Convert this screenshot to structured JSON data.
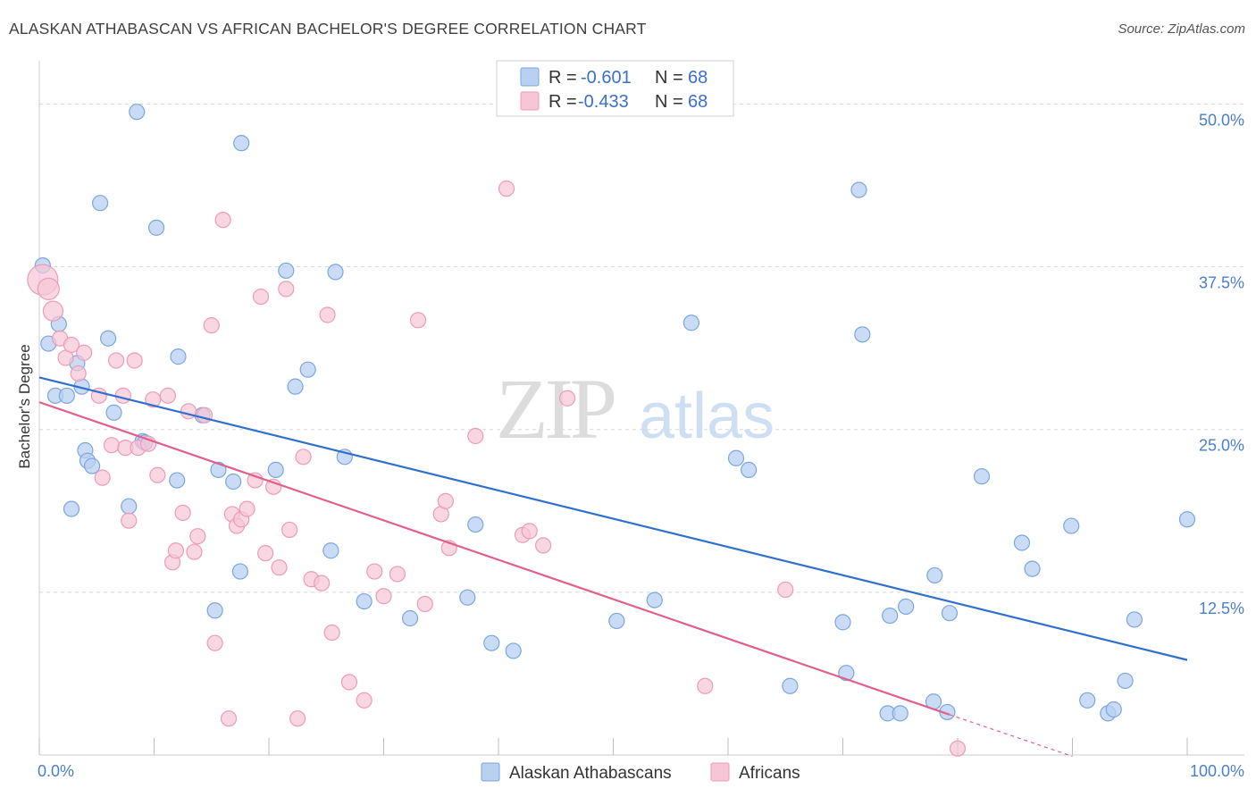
{
  "title": "ALASKAN ATHABASCAN VS AFRICAN BACHELOR'S DEGREE CORRELATION CHART",
  "source": "Source: ZipAtlas.com",
  "watermark": {
    "zip": "ZIP",
    "atlas": "atlas"
  },
  "colors": {
    "blue_fill": "#b8d0f2",
    "blue_stroke": "#7aa6e0",
    "blue_line": "#2f6fce",
    "pink_fill": "#f7c6d6",
    "pink_stroke": "#ef9ab6",
    "pink_line": "#e0608a",
    "grid": "#d8d8d8",
    "axis_text": "#4a7fd0"
  },
  "legend": [
    {
      "r_label": "R =",
      "r_value": "-0.601",
      "n_label": "N =",
      "n_value": "68"
    },
    {
      "r_label": "R =",
      "r_value": "-0.433",
      "n_label": "N =",
      "n_value": "68"
    }
  ],
  "bottom_legend": [
    "Alaskan Athabascans",
    "Africans"
  ],
  "chart_data": {
    "type": "scatter",
    "ylabel": "Bachelor's Degree",
    "xlabel": "",
    "x_tick_labels": [
      "0.0%",
      "100.0%"
    ],
    "y_tick_labels": [
      "12.5%",
      "25.0%",
      "37.5%",
      "50.0%"
    ],
    "y_ticks": [
      12.5,
      25.0,
      37.5,
      50.0
    ],
    "xlim": [
      0,
      100
    ],
    "ylim": [
      0,
      52.5
    ],
    "grid": true,
    "legend_position": "top-center",
    "series": [
      {
        "name": "Alaskan Athabascans",
        "trend": {
          "x": [
            0,
            100
          ],
          "y": [
            29.0,
            7.3
          ]
        },
        "points": [
          [
            0.3,
            37.6
          ],
          [
            0.8,
            31.6
          ],
          [
            1.4,
            27.6
          ],
          [
            1.7,
            33.1
          ],
          [
            2.4,
            27.6
          ],
          [
            2.8,
            18.9
          ],
          [
            3.3,
            30.1
          ],
          [
            3.7,
            28.3
          ],
          [
            4.0,
            23.4
          ],
          [
            4.2,
            22.6
          ],
          [
            4.6,
            22.2
          ],
          [
            5.3,
            42.4
          ],
          [
            6.0,
            32.0
          ],
          [
            6.5,
            26.3
          ],
          [
            7.8,
            19.1
          ],
          [
            8.5,
            49.4
          ],
          [
            9.0,
            24.1
          ],
          [
            9.2,
            24.0
          ],
          [
            10.2,
            40.5
          ],
          [
            12.0,
            21.1
          ],
          [
            12.1,
            30.6
          ],
          [
            14.2,
            26.1
          ],
          [
            15.3,
            11.1
          ],
          [
            15.6,
            21.9
          ],
          [
            16.9,
            21.0
          ],
          [
            17.5,
            14.1
          ],
          [
            17.6,
            47.0
          ],
          [
            20.6,
            21.9
          ],
          [
            21.5,
            37.2
          ],
          [
            22.3,
            28.3
          ],
          [
            23.4,
            29.6
          ],
          [
            25.4,
            15.7
          ],
          [
            25.8,
            37.1
          ],
          [
            26.6,
            22.9
          ],
          [
            28.3,
            11.8
          ],
          [
            32.3,
            10.5
          ],
          [
            37.3,
            12.1
          ],
          [
            38.0,
            17.7
          ],
          [
            39.4,
            8.6
          ],
          [
            41.3,
            8.0
          ],
          [
            50.3,
            10.3
          ],
          [
            53.6,
            11.9
          ],
          [
            56.8,
            33.2
          ],
          [
            60.7,
            22.8
          ],
          [
            61.8,
            21.9
          ],
          [
            65.4,
            5.3
          ],
          [
            70.0,
            10.2
          ],
          [
            70.3,
            6.3
          ],
          [
            71.4,
            43.4
          ],
          [
            71.7,
            32.3
          ],
          [
            73.9,
            3.2
          ],
          [
            74.1,
            10.7
          ],
          [
            75.0,
            3.2
          ],
          [
            75.5,
            11.4
          ],
          [
            77.9,
            4.1
          ],
          [
            78.0,
            13.8
          ],
          [
            79.1,
            3.3
          ],
          [
            79.3,
            10.9
          ],
          [
            82.1,
            21.4
          ],
          [
            85.6,
            16.3
          ],
          [
            86.5,
            14.3
          ],
          [
            89.9,
            17.6
          ],
          [
            91.3,
            4.2
          ],
          [
            93.1,
            3.2
          ],
          [
            93.6,
            3.5
          ],
          [
            94.6,
            5.7
          ],
          [
            95.4,
            10.4
          ],
          [
            100.0,
            18.1
          ]
        ]
      },
      {
        "name": "Africans",
        "trend": {
          "x": [
            0,
            79.3
          ],
          "y": [
            27.1,
            3.1
          ]
        },
        "trend_extension": {
          "x": [
            79.3,
            90.0
          ],
          "y": [
            3.1,
            -0.1
          ]
        },
        "points": [
          [
            0.3,
            36.5
          ],
          [
            0.8,
            35.8
          ],
          [
            1.2,
            34.1
          ],
          [
            1.8,
            32.0
          ],
          [
            2.3,
            30.5
          ],
          [
            2.8,
            31.5
          ],
          [
            3.4,
            29.3
          ],
          [
            3.9,
            30.9
          ],
          [
            5.2,
            27.6
          ],
          [
            5.5,
            21.3
          ],
          [
            6.3,
            23.8
          ],
          [
            6.7,
            30.3
          ],
          [
            7.3,
            27.6
          ],
          [
            7.5,
            23.6
          ],
          [
            7.8,
            18.0
          ],
          [
            8.3,
            30.3
          ],
          [
            8.6,
            23.6
          ],
          [
            9.5,
            23.9
          ],
          [
            9.9,
            27.3
          ],
          [
            10.3,
            21.5
          ],
          [
            11.2,
            27.6
          ],
          [
            11.6,
            14.8
          ],
          [
            11.9,
            15.7
          ],
          [
            12.5,
            18.6
          ],
          [
            13.0,
            26.4
          ],
          [
            13.5,
            15.6
          ],
          [
            13.8,
            16.8
          ],
          [
            14.4,
            26.1
          ],
          [
            15.0,
            33.0
          ],
          [
            15.3,
            8.6
          ],
          [
            16.0,
            41.1
          ],
          [
            16.5,
            2.8
          ],
          [
            16.8,
            18.5
          ],
          [
            17.2,
            17.6
          ],
          [
            17.6,
            18.1
          ],
          [
            18.1,
            18.9
          ],
          [
            18.8,
            21.1
          ],
          [
            19.3,
            35.2
          ],
          [
            19.7,
            15.5
          ],
          [
            20.4,
            20.6
          ],
          [
            20.9,
            14.4
          ],
          [
            21.5,
            35.8
          ],
          [
            21.8,
            17.3
          ],
          [
            22.5,
            2.8
          ],
          [
            23.0,
            22.9
          ],
          [
            23.7,
            13.5
          ],
          [
            24.6,
            13.2
          ],
          [
            25.1,
            33.8
          ],
          [
            25.5,
            9.4
          ],
          [
            27.0,
            5.6
          ],
          [
            28.3,
            4.2
          ],
          [
            29.2,
            14.1
          ],
          [
            30.0,
            12.2
          ],
          [
            31.2,
            13.9
          ],
          [
            33.0,
            33.4
          ],
          [
            33.6,
            11.6
          ],
          [
            35.0,
            18.5
          ],
          [
            35.4,
            19.5
          ],
          [
            35.7,
            15.9
          ],
          [
            38.0,
            24.5
          ],
          [
            40.7,
            43.5
          ],
          [
            42.1,
            16.9
          ],
          [
            42.7,
            17.2
          ],
          [
            43.9,
            16.1
          ],
          [
            46.0,
            27.4
          ],
          [
            58.0,
            5.3
          ],
          [
            65.0,
            12.7
          ],
          [
            80.0,
            0.5
          ]
        ]
      }
    ]
  }
}
